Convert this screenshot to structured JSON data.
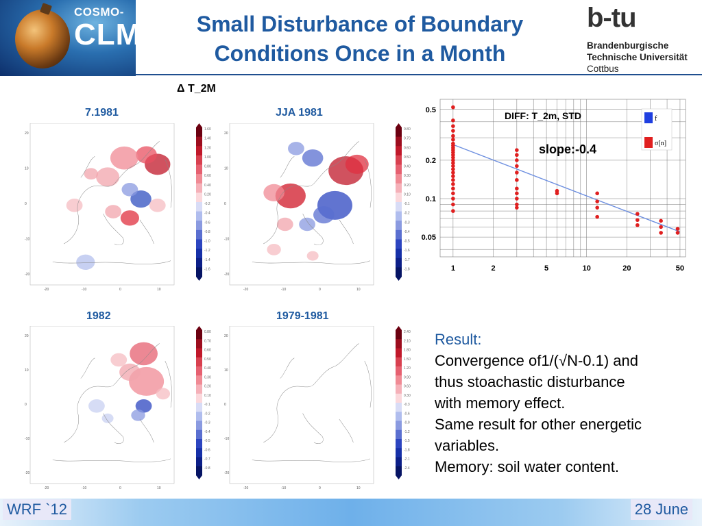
{
  "header": {
    "title_line1": "Small Disturbance of Boundary",
    "title_line2": "Conditions Once in a Month",
    "logo_left_small": "COSMO-",
    "logo_left_big": "CLM",
    "logo_right_mark": "b-tu",
    "logo_right_line1": "Brandenburgische",
    "logo_right_line2": "Technische Universität",
    "logo_right_line3": "Cottbus"
  },
  "maps": {
    "variable_label": "Δ T_2M",
    "panels": [
      {
        "label": "7.1981",
        "colorbar": [
          "1.60",
          "1.40",
          "1.20",
          "1.00",
          "0.80",
          "0.60",
          "0.40",
          "0.20",
          "-0.2",
          "-0.4",
          "-0.6",
          "-0.8",
          "-1.0",
          "-1.2",
          "-1.4",
          "-1.6"
        ]
      },
      {
        "label": "JJA 1981",
        "colorbar": [
          "0.80",
          "0.70",
          "0.60",
          "0.50",
          "0.40",
          "0.30",
          "0.20",
          "0.10",
          "-0.1",
          "-0.2",
          "-0.3",
          "-0.4",
          "-0.5",
          "-1.6",
          "-1.7",
          "-1.8"
        ]
      },
      {
        "label": "1982",
        "colorbar": [
          "0.80",
          "0.70",
          "0.60",
          "0.50",
          "0.40",
          "0.30",
          "0.20",
          "0.10",
          "-0.1",
          "-0.2",
          "-0.3",
          "-0.4",
          "-0.5",
          "-0.6",
          "-0.7",
          "-0.8"
        ]
      },
      {
        "label": "1979-1981",
        "colorbar": [
          "2.40",
          "2.10",
          "1.80",
          "1.50",
          "1.20",
          "0.90",
          "0.60",
          "0.30",
          "-0.3",
          "-0.6",
          "-0.9",
          "-1.2",
          "-1.5",
          "-1.8",
          "-2.1",
          "-2.4"
        ]
      }
    ],
    "map_axis_y": [
      "20",
      "10",
      "0",
      "-10",
      "-20"
    ],
    "map_axis_x": [
      "-20",
      "-10",
      "0",
      "10"
    ]
  },
  "chart_data": {
    "type": "scatter",
    "title": "DIFF: T_2m, STD",
    "annotation": "slope:-0.4",
    "legend": [
      {
        "name": "f",
        "color": "#1f3fe0"
      },
      {
        "name": "σ[n]",
        "color": "#e01f1f"
      }
    ],
    "x_scale": "log",
    "y_scale": "log",
    "x_ticks": [
      "1",
      "2",
      "5",
      "10",
      "20",
      "50"
    ],
    "y_ticks": [
      "0.5",
      "0.2",
      "0.1",
      "0.05"
    ],
    "xlim": [
      0.8,
      55
    ],
    "ylim": [
      0.035,
      0.6
    ],
    "series": [
      {
        "name": "σ[n]",
        "color": "#e01f1f",
        "points": [
          [
            1,
            0.52
          ],
          [
            1,
            0.41
          ],
          [
            1,
            0.37
          ],
          [
            1,
            0.34
          ],
          [
            1,
            0.31
          ],
          [
            1,
            0.29
          ],
          [
            1,
            0.27
          ],
          [
            1,
            0.26
          ],
          [
            1,
            0.25
          ],
          [
            1,
            0.24
          ],
          [
            1,
            0.23
          ],
          [
            1,
            0.22
          ],
          [
            1,
            0.21
          ],
          [
            1,
            0.2
          ],
          [
            1,
            0.19
          ],
          [
            1,
            0.18
          ],
          [
            1,
            0.17
          ],
          [
            1,
            0.16
          ],
          [
            1,
            0.15
          ],
          [
            1,
            0.14
          ],
          [
            1,
            0.13
          ],
          [
            1,
            0.12
          ],
          [
            1,
            0.11
          ],
          [
            1,
            0.1
          ],
          [
            1,
            0.09
          ],
          [
            1,
            0.08
          ],
          [
            3,
            0.24
          ],
          [
            3,
            0.22
          ],
          [
            3,
            0.2
          ],
          [
            3,
            0.18
          ],
          [
            3,
            0.16
          ],
          [
            3,
            0.14
          ],
          [
            3,
            0.12
          ],
          [
            3,
            0.11
          ],
          [
            3,
            0.1
          ],
          [
            3,
            0.09
          ],
          [
            3,
            0.085
          ],
          [
            6,
            0.115
          ],
          [
            6,
            0.11
          ],
          [
            12,
            0.11
          ],
          [
            12,
            0.095
          ],
          [
            12,
            0.085
          ],
          [
            12,
            0.072
          ],
          [
            24,
            0.076
          ],
          [
            24,
            0.068
          ],
          [
            24,
            0.062
          ],
          [
            36,
            0.067
          ],
          [
            36,
            0.06
          ],
          [
            36,
            0.054
          ],
          [
            48,
            0.058
          ],
          [
            48,
            0.054
          ]
        ]
      },
      {
        "name": "f",
        "color": "#6d8fe0",
        "line": [
          [
            1,
            0.265
          ],
          [
            50,
            0.055
          ]
        ]
      }
    ]
  },
  "result": {
    "heading": "Result:",
    "lines": [
      "Convergence of1/(√N-0.1)  and",
      "thus stoachastic disturbance",
      "with memory effect.",
      "Same result for other energetic",
      "variables.",
      "Memory: soil water content."
    ]
  },
  "footer": {
    "left": "WRF `12",
    "right": "28 June"
  }
}
